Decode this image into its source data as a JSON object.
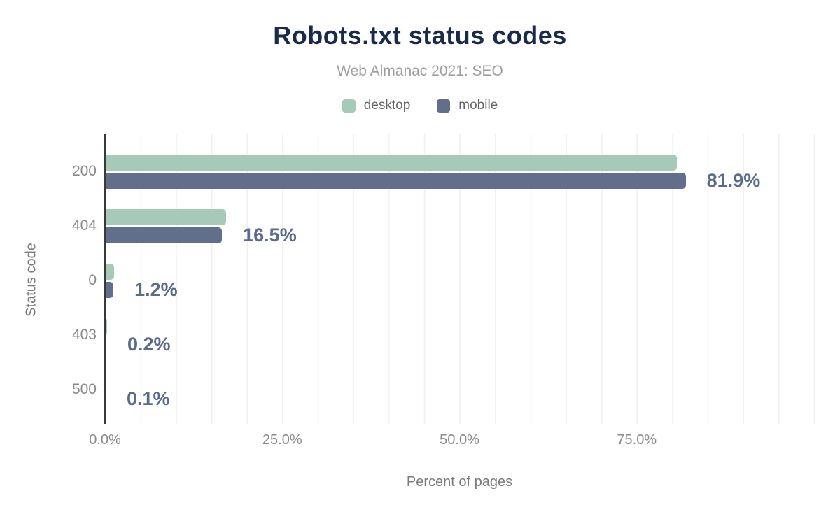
{
  "chart_data": {
    "type": "bar",
    "orientation": "horizontal",
    "title": "Robots.txt status codes",
    "subtitle": "Web Almanac 2021: SEO",
    "categories": [
      "200",
      "404",
      "0",
      "403",
      "500"
    ],
    "series": [
      {
        "name": "desktop",
        "color": "#a7c9b8",
        "values": [
          80.7,
          17.1,
          1.3,
          0.3,
          0.1
        ]
      },
      {
        "name": "mobile",
        "color": "#616f8b",
        "values": [
          81.9,
          16.5,
          1.2,
          0.2,
          0.1
        ]
      }
    ],
    "data_labels": [
      "81.9%",
      "16.5%",
      "1.2%",
      "0.2%",
      "0.1%"
    ],
    "data_label_series": "mobile",
    "xlabel": "Percent of pages",
    "ylabel": "Status code",
    "x_ticks": [
      "0.0%",
      "25.0%",
      "50.0%",
      "75.0%"
    ],
    "x_tick_values": [
      0,
      25,
      50,
      75
    ],
    "xlim": [
      0,
      100
    ],
    "grid": "vertical, every 5%",
    "legend_position": "top-center"
  },
  "colors": {
    "title": "#1b2a49",
    "subtitle": "#9e9e9e",
    "legend_text": "#666666",
    "tick_text": "#8a8a8a",
    "axis_title": "#7b7b7b",
    "axis_line": "#37393b",
    "gridline": "#f0f0f0",
    "desktop": "#a7c9b8",
    "mobile": "#616f8b",
    "data_label": "#5a6b8c"
  }
}
